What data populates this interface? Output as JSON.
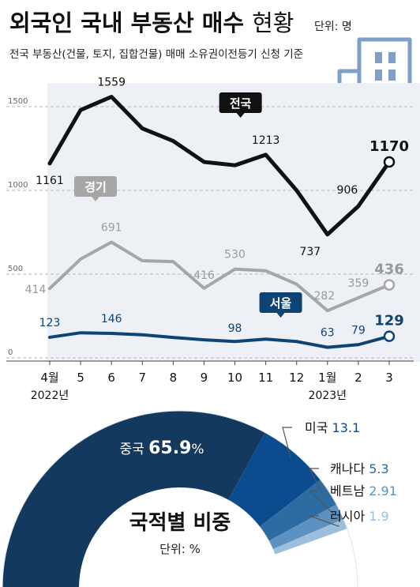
{
  "header": {
    "title_main": "외국인 국내 부동산 매수",
    "title_tail": "현황",
    "unit": "단위: 명",
    "subtitle": "전국 부동산(건물, 토지, 집합건물) 매매 소유권이전등기 신청 기준",
    "building_icon": "office-building-icon"
  },
  "chart_data": [
    {
      "type": "line",
      "categories": [
        "4월",
        "5",
        "6",
        "7",
        "8",
        "9",
        "10",
        "11",
        "12",
        "1월",
        "2",
        "3"
      ],
      "year_labels": [
        "2022년",
        "2023년"
      ],
      "y_ticks": [
        0,
        500,
        1000,
        1500
      ],
      "ylim": [
        0,
        1650
      ],
      "series": [
        {
          "name": "전국",
          "color": "#111111",
          "values": [
            1161,
            1480,
            1559,
            1370,
            1295,
            1170,
            1150,
            1213,
            1000,
            737,
            906,
            1170
          ],
          "labels": {
            "0": "1161",
            "2": "1559",
            "7": "1213",
            "9": "737",
            "10": "906",
            "11": "1170"
          }
        },
        {
          "name": "경기",
          "color": "#a6a6a6",
          "values": [
            414,
            590,
            691,
            580,
            575,
            416,
            530,
            520,
            440,
            282,
            359,
            436
          ],
          "labels": {
            "0": "414",
            "2": "691",
            "5": "416",
            "6": "530",
            "9": "282",
            "10": "359",
            "11": "436"
          }
        },
        {
          "name": "서울",
          "color": "#0f4374",
          "values": [
            123,
            150,
            146,
            138,
            122,
            108,
            98,
            112,
            98,
            63,
            79,
            129
          ],
          "labels": {
            "0": "123",
            "2": "146",
            "6": "98",
            "9": "63",
            "10": "79",
            "11": "129"
          }
        }
      ]
    },
    {
      "type": "pie",
      "title": "국적별 비중",
      "unit": "단위: %",
      "slices": [
        {
          "name": "중국",
          "value": 65.9,
          "value_label": "65.9",
          "suffix": "%",
          "color": "#14395f"
        },
        {
          "name": "미국",
          "value": 13.1,
          "value_label": "13.1",
          "color": "#0b4c8e"
        },
        {
          "name": "캐나다",
          "value": 5.3,
          "value_label": "5.3",
          "color": "#2d6ca3"
        },
        {
          "name": "베트남",
          "value": 2.91,
          "value_label": "2.91",
          "color": "#5d92c0"
        },
        {
          "name": "러시아",
          "value": 1.9,
          "value_label": "1.9",
          "color": "#9bbfdc"
        },
        {
          "name": "",
          "value": 10.89,
          "value_label": "",
          "color": "#ffffff"
        }
      ]
    }
  ]
}
